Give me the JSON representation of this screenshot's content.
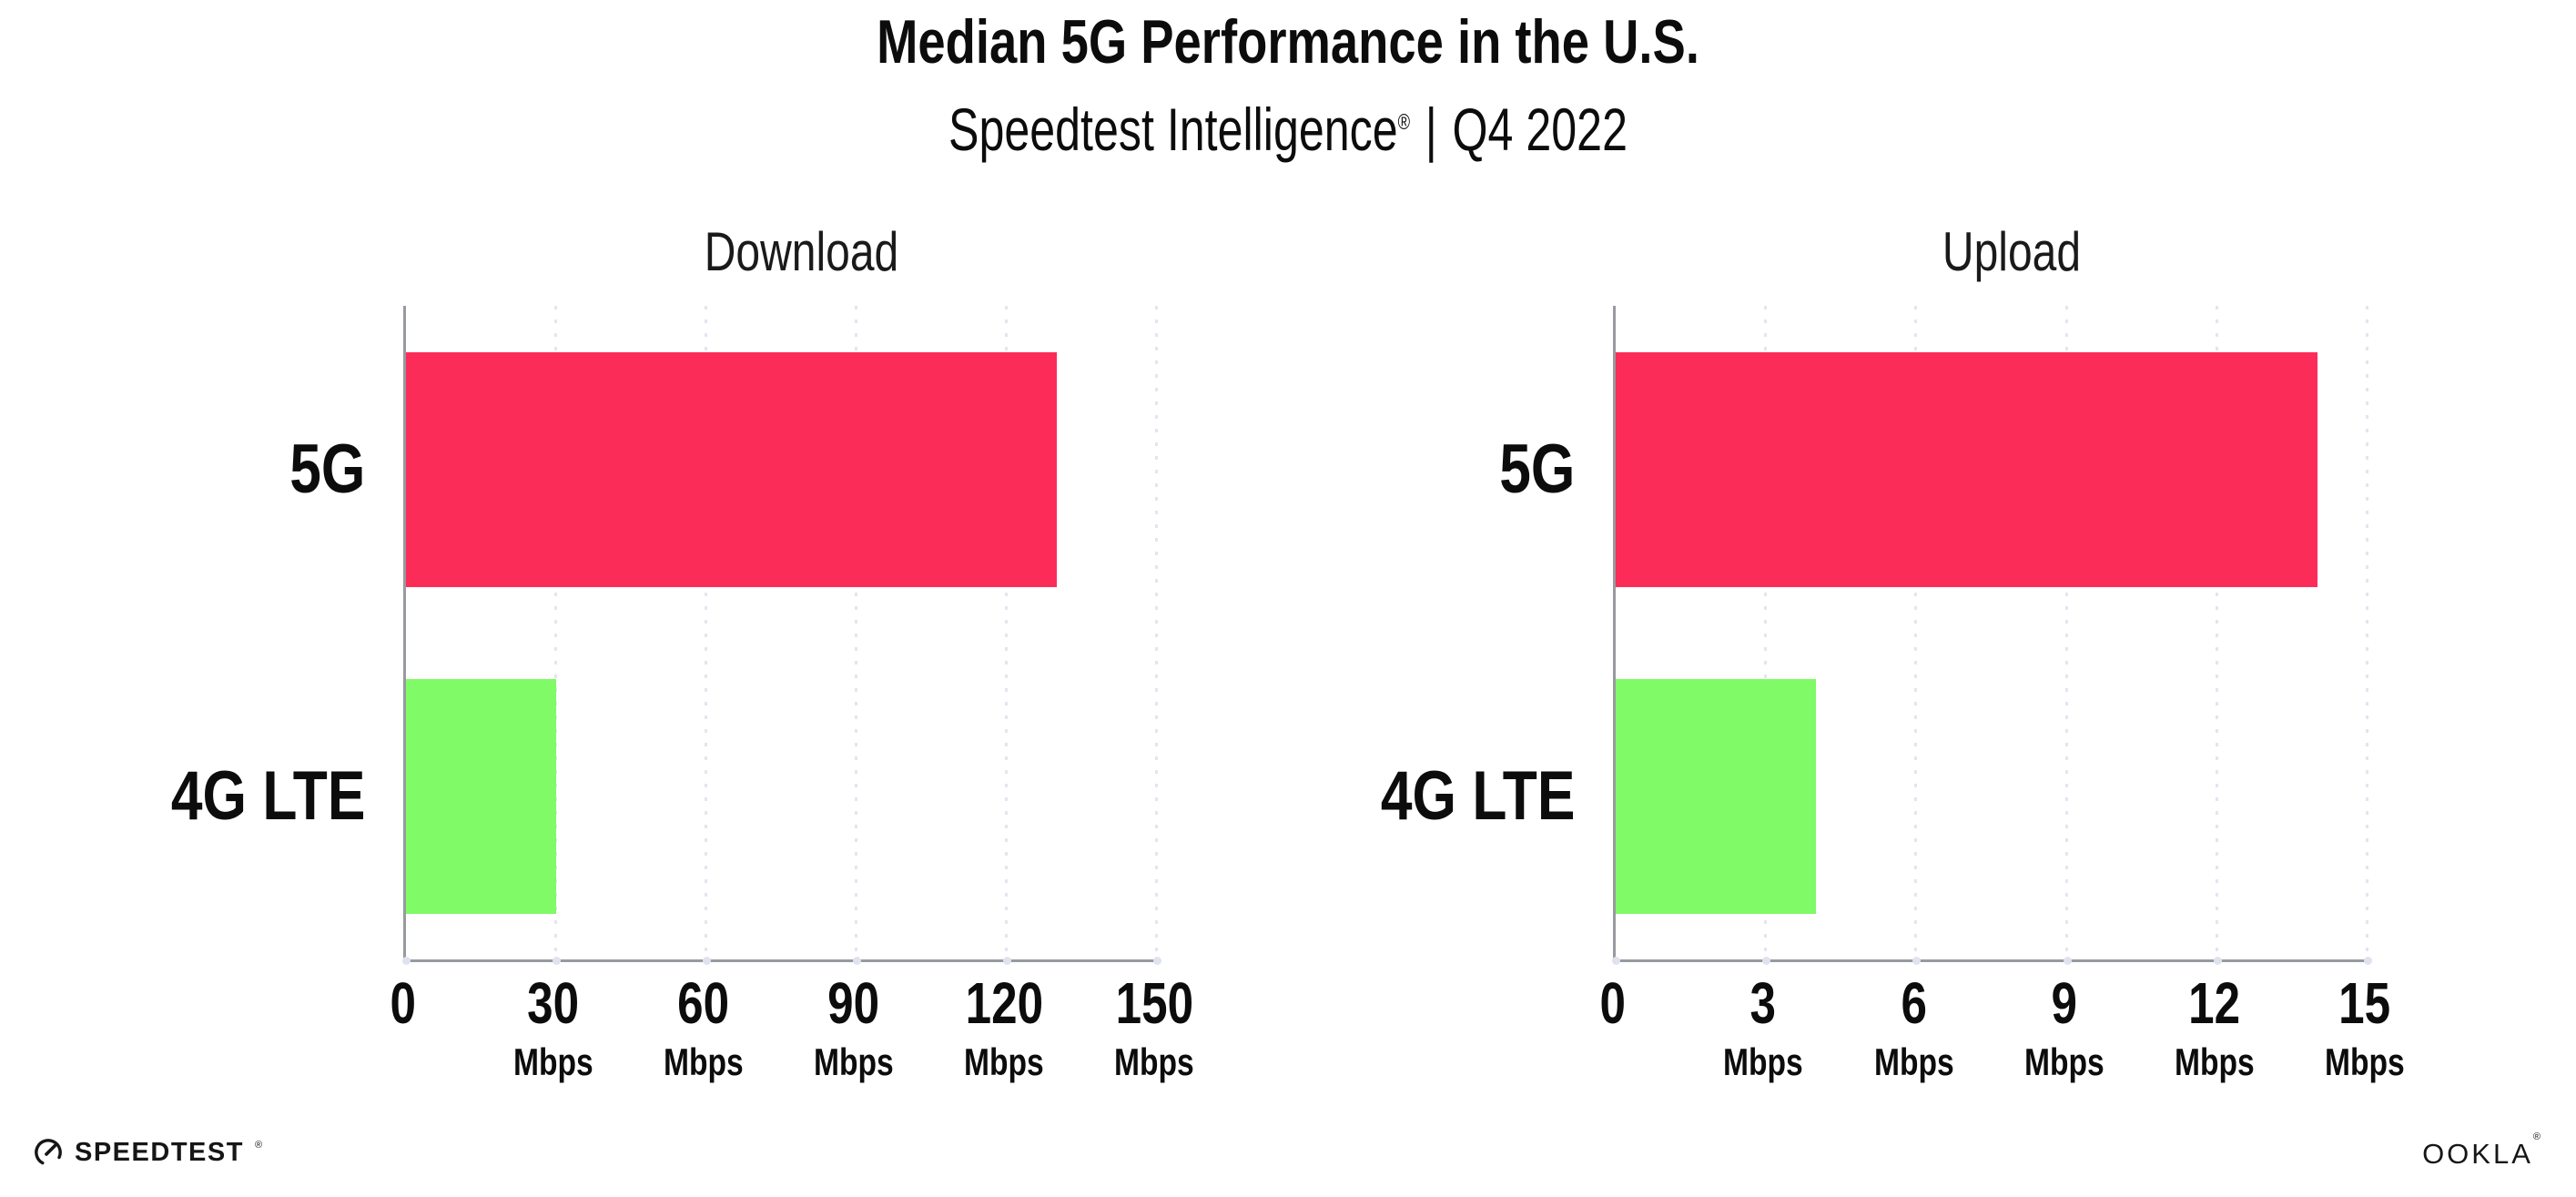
{
  "page": {
    "title": "Median 5G Performance in the U.S.",
    "subtitle_brand": "Speedtest Intelligence",
    "subtitle_reg": "®",
    "subtitle_sep": "|",
    "subtitle_period": "Q4 2022"
  },
  "colors": {
    "bar_5g": "#fc2c58",
    "bar_4g": "#80fa66",
    "axis": "#979a9e",
    "grid": "#e3e5f0",
    "text": "#0c0c0c"
  },
  "chart_data": [
    {
      "type": "bar",
      "orientation": "horizontal",
      "title": "Download",
      "categories": [
        "5G",
        "4G LTE"
      ],
      "values": [
        130,
        30
      ],
      "unit": "Mbps",
      "xlabel": "",
      "ylabel": "",
      "xlim": [
        0,
        150
      ],
      "xticks": [
        0,
        30,
        60,
        90,
        120,
        150
      ],
      "grid": "dotted-vertical",
      "legend": "none",
      "series_colors": [
        "#fc2c58",
        "#80fa66"
      ]
    },
    {
      "type": "bar",
      "orientation": "horizontal",
      "title": "Upload",
      "categories": [
        "5G",
        "4G LTE"
      ],
      "values": [
        14,
        4
      ],
      "unit": "Mbps",
      "xlabel": "",
      "ylabel": "",
      "xlim": [
        0,
        15
      ],
      "xticks": [
        0,
        3,
        6,
        9,
        12,
        15
      ],
      "grid": "dotted-vertical",
      "legend": "none",
      "series_colors": [
        "#fc2c58",
        "#80fa66"
      ]
    }
  ],
  "footer": {
    "speedtest_label": "SPEEDTEST",
    "speedtest_mark": "®",
    "ookla_label": "OOKLA",
    "ookla_mark": "®"
  }
}
